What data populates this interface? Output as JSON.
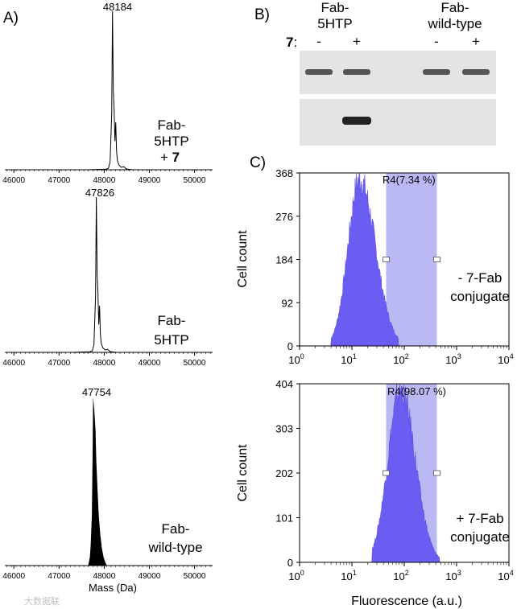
{
  "panels": {
    "a": "A)",
    "b": "B)",
    "c": "C)"
  },
  "watermark": "大数据联",
  "colors": {
    "spectrum": "#000000",
    "histogram": "#6a5cf0",
    "gate": "#b9b7f2",
    "gel_bg": "#e6e6e6",
    "band": "#4a4a4a"
  },
  "chart_data": [
    {
      "type": "line",
      "panel": "A",
      "x_ticks": [
        46000,
        47000,
        48000,
        49000,
        50000
      ],
      "xlim": [
        45800,
        50400
      ],
      "peak_label": "48184",
      "labels": [
        "Fab-",
        "5HTP",
        "+ ",
        "7"
      ],
      "peaks": [
        {
          "x": 48184,
          "y": 1.0
        }
      ]
    },
    {
      "type": "line",
      "panel": "A",
      "x_ticks": [
        46000,
        47000,
        48000,
        49000,
        50000
      ],
      "xlim": [
        45800,
        50400
      ],
      "peak_label": "47826",
      "labels": [
        "Fab-",
        "5HTP"
      ],
      "peaks": [
        {
          "x": 47826,
          "y": 1.0
        }
      ]
    },
    {
      "type": "bar",
      "panel": "A",
      "x_ticks": [
        46000,
        47000,
        48000,
        49000,
        50000
      ],
      "xlim": [
        45800,
        50400
      ],
      "peak_label": "47754",
      "labels": [
        "Fab-",
        "wild-type"
      ],
      "xlabel": "Mass (Da)",
      "peaks": [
        {
          "x": 47754,
          "y": 1.0
        }
      ]
    },
    {
      "type": "table",
      "panel": "B",
      "headers": [
        [
          "Fab-",
          "5HTP"
        ],
        [
          "Fab-",
          "wild-type"
        ]
      ],
      "row_label": "7",
      "row_label_suffix": ":",
      "lanes": [
        "-",
        "+",
        "-",
        "+"
      ],
      "gel_top_bands": [
        true,
        true,
        true,
        true
      ],
      "gel_bottom_bands": [
        false,
        true,
        false,
        false
      ]
    },
    {
      "type": "area",
      "panel": "C",
      "scale": "log",
      "xlim": [
        1,
        10000
      ],
      "x_ticks": [
        "10",
        "10",
        "10",
        "10",
        "10"
      ],
      "x_exps": [
        "0",
        "1",
        "2",
        "3",
        "4"
      ],
      "y_ticks": [
        "0",
        "92",
        "184",
        "276",
        "368"
      ],
      "ylim": [
        0,
        368
      ],
      "ylabel": "Cell count",
      "gate": {
        "label": "R4",
        "percent": "(7.34 %)",
        "from": 45,
        "to": 420
      },
      "labels": [
        "- 7-Fab",
        "conjugate"
      ],
      "peak_x": 14,
      "peak_y": 360
    },
    {
      "type": "area",
      "panel": "C",
      "scale": "log",
      "xlim": [
        1,
        10000
      ],
      "x_ticks": [
        "10",
        "10",
        "10",
        "10",
        "10"
      ],
      "x_exps": [
        "0",
        "1",
        "2",
        "3",
        "4"
      ],
      "y_ticks": [
        "0",
        "101",
        "202",
        "303",
        "404"
      ],
      "ylim": [
        0,
        404
      ],
      "ylabel": "Cell count",
      "xlabel": "Fluorescence (a.u.)",
      "gate": {
        "label": "R4",
        "percent": "(98.07 %)",
        "from": 45,
        "to": 420
      },
      "labels": [
        "+ 7-Fab",
        "conjugate"
      ],
      "peak_x": 85,
      "peak_y": 395
    }
  ]
}
